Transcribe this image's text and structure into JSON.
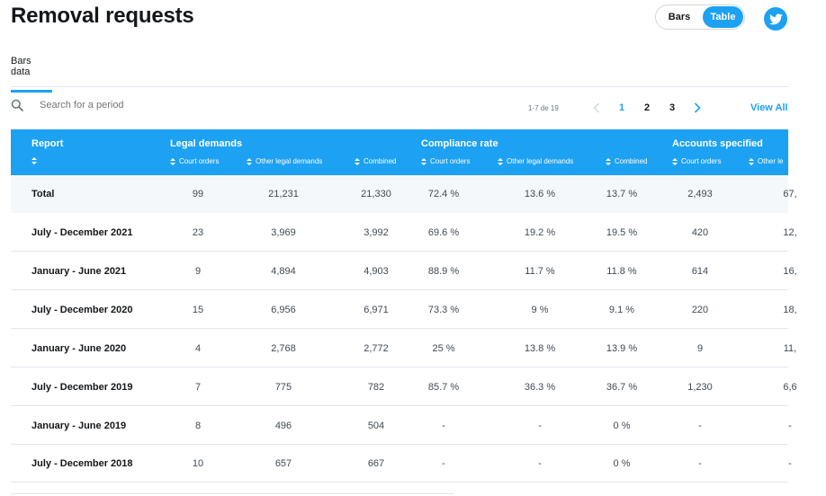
{
  "page": {
    "title": "Removal requests",
    "toggle": {
      "bars_label": "Bars",
      "table_label": "Table",
      "selected": "Table"
    },
    "tab": "Bars data"
  },
  "search": {
    "placeholder": "Search for a period"
  },
  "pagination": {
    "range": "1-7 de 19",
    "pages": [
      "1",
      "2",
      "3"
    ],
    "current": "1",
    "view_all": "View All"
  },
  "colors": {
    "accent": "#1da1f2",
    "total_row": "#f5f8fa"
  },
  "table": {
    "report_header": "Report",
    "groups": [
      "Legal demands",
      "Compliance rate",
      "Accounts specified"
    ],
    "subheaders": [
      "Court orders",
      "Other legal demands",
      "Combined",
      "Court orders",
      "Other legal demands",
      "Combined",
      "Court orders",
      "Other le"
    ],
    "rows": [
      [
        "Total",
        "99",
        "21,231",
        "21,330",
        "72.4 %",
        "13.6 %",
        "13.7 %",
        "2,493",
        "67,"
      ],
      [
        "July - December 2021",
        "23",
        "3,969",
        "3,992",
        "69.6 %",
        "19.2 %",
        "19.5 %",
        "420",
        "12,"
      ],
      [
        "January - June 2021",
        "9",
        "4,894",
        "4,903",
        "88.9 %",
        "11.7 %",
        "11.8 %",
        "614",
        "16,"
      ],
      [
        "July - December 2020",
        "15",
        "6,956",
        "6,971",
        "73.3 %",
        "9 %",
        "9.1 %",
        "220",
        "18,"
      ],
      [
        "January - June 2020",
        "4",
        "2,768",
        "2,772",
        "25 %",
        "13.8 %",
        "13.9 %",
        "9",
        "11,"
      ],
      [
        "July - December 2019",
        "7",
        "775",
        "782",
        "85.7 %",
        "36.3 %",
        "36.7 %",
        "1,230",
        "6,6"
      ],
      [
        "January - June 2019",
        "8",
        "496",
        "504",
        "-",
        "-",
        "0 %",
        "-",
        "-"
      ],
      [
        "July - December 2018",
        "10",
        "657",
        "667",
        "-",
        "-",
        "0 %",
        "-",
        "-"
      ]
    ]
  }
}
